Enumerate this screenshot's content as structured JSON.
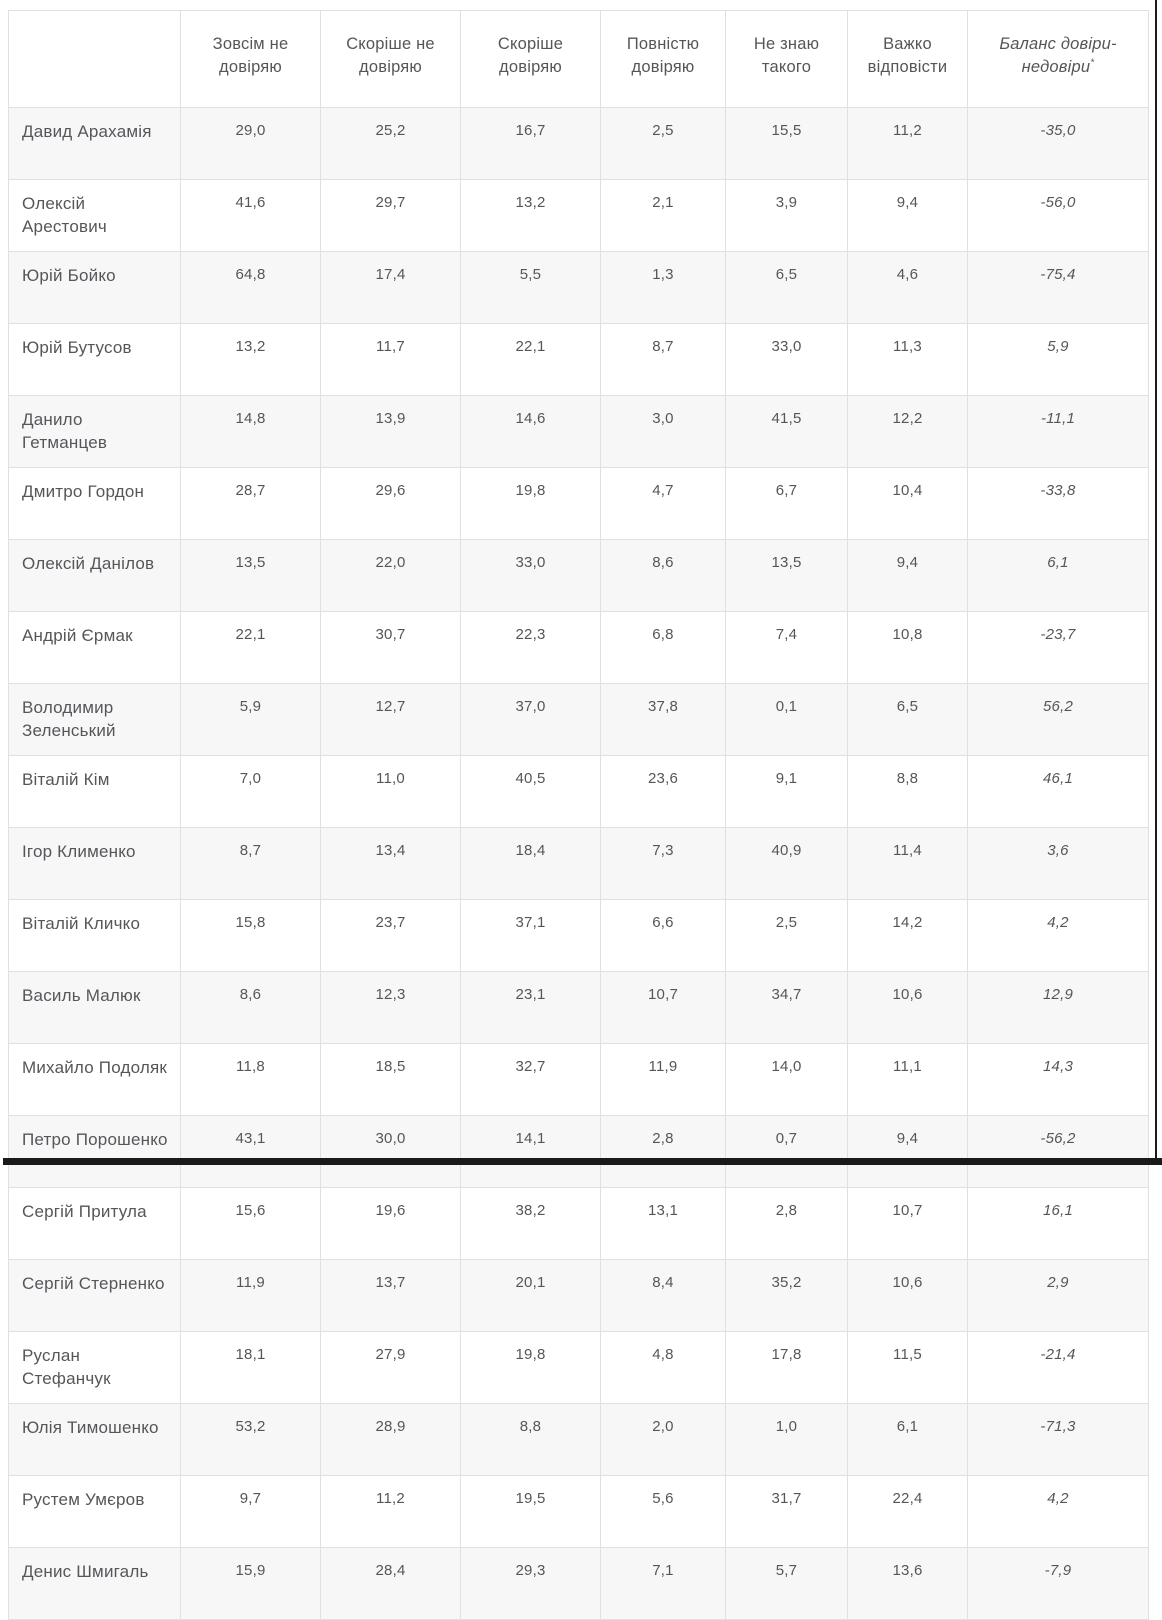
{
  "chart_data": {
    "type": "table",
    "title": "",
    "row_header": "",
    "decimal_separator": ",",
    "columns": [
      "Зовсім не довіряю",
      "Скоріше не довіряю",
      "Скоріше довіряю",
      "Повністю довіряю",
      "Не знаю такого",
      "Важко відповісти"
    ],
    "balance_column_label": "Баланс довіри-недовіри",
    "footnote_mark": "*",
    "rows": [
      {
        "name": "Давид Арахамія",
        "values": [
          29.0,
          25.2,
          16.7,
          2.5,
          15.5,
          11.2
        ],
        "balance": -35.0
      },
      {
        "name": "Олексій Арестович",
        "values": [
          41.6,
          29.7,
          13.2,
          2.1,
          3.9,
          9.4
        ],
        "balance": -56.0
      },
      {
        "name": "Юрій Бойко",
        "values": [
          64.8,
          17.4,
          5.5,
          1.3,
          6.5,
          4.6
        ],
        "balance": -75.4
      },
      {
        "name": "Юрій Бутусов",
        "values": [
          13.2,
          11.7,
          22.1,
          8.7,
          33.0,
          11.3
        ],
        "balance": 5.9
      },
      {
        "name": "Данило Гетманцев",
        "values": [
          14.8,
          13.9,
          14.6,
          3.0,
          41.5,
          12.2
        ],
        "balance": -11.1
      },
      {
        "name": "Дмитро Гордон",
        "values": [
          28.7,
          29.6,
          19.8,
          4.7,
          6.7,
          10.4
        ],
        "balance": -33.8
      },
      {
        "name": "Олексій Данілов",
        "values": [
          13.5,
          22.0,
          33.0,
          8.6,
          13.5,
          9.4
        ],
        "balance": 6.1
      },
      {
        "name": "Андрій Єрмак",
        "values": [
          22.1,
          30.7,
          22.3,
          6.8,
          7.4,
          10.8
        ],
        "balance": -23.7
      },
      {
        "name": "Володимир Зеленський",
        "values": [
          5.9,
          12.7,
          37.0,
          37.8,
          0.1,
          6.5
        ],
        "balance": 56.2
      },
      {
        "name": "Віталій Кім",
        "values": [
          7.0,
          11.0,
          40.5,
          23.6,
          9.1,
          8.8
        ],
        "balance": 46.1
      },
      {
        "name": "Ігор Клименко",
        "values": [
          8.7,
          13.4,
          18.4,
          7.3,
          40.9,
          11.4
        ],
        "balance": 3.6
      },
      {
        "name": "Віталій Кличко",
        "values": [
          15.8,
          23.7,
          37.1,
          6.6,
          2.5,
          14.2
        ],
        "balance": 4.2
      },
      {
        "name": "Василь Малюк",
        "values": [
          8.6,
          12.3,
          23.1,
          10.7,
          34.7,
          10.6
        ],
        "balance": 12.9
      },
      {
        "name": "Михайло Подоляк",
        "values": [
          11.8,
          18.5,
          32.7,
          11.9,
          14.0,
          11.1
        ],
        "balance": 14.3
      },
      {
        "name": "Петро Порошенко",
        "values": [
          43.1,
          30.0,
          14.1,
          2.8,
          0.7,
          9.4
        ],
        "balance": -56.2
      },
      {
        "name": "Сергій Притула",
        "values": [
          15.6,
          19.6,
          38.2,
          13.1,
          2.8,
          10.7
        ],
        "balance": 16.1
      },
      {
        "name": "Сергій Стерненко",
        "values": [
          11.9,
          13.7,
          20.1,
          8.4,
          35.2,
          10.6
        ],
        "balance": 2.9
      },
      {
        "name": "Руслан Стефанчук",
        "values": [
          18.1,
          27.9,
          19.8,
          4.8,
          17.8,
          11.5
        ],
        "balance": -21.4
      },
      {
        "name": "Юлія Тимошенко",
        "values": [
          53.2,
          28.9,
          8.8,
          2.0,
          1.0,
          6.1
        ],
        "balance": -71.3
      },
      {
        "name": "Рустем Умєров",
        "values": [
          9.7,
          11.2,
          19.5,
          5.6,
          31.7,
          22.4
        ],
        "balance": 4.2
      },
      {
        "name": "Денис Шмигаль",
        "values": [
          15.9,
          28.4,
          29.3,
          7.1,
          5.7,
          13.6
        ],
        "balance": -7.9
      }
    ]
  },
  "colors": {
    "text": "#54565a",
    "border": "#e0e0e0",
    "stripe": "#f7f7f8",
    "frame": "#1a1a1a"
  }
}
